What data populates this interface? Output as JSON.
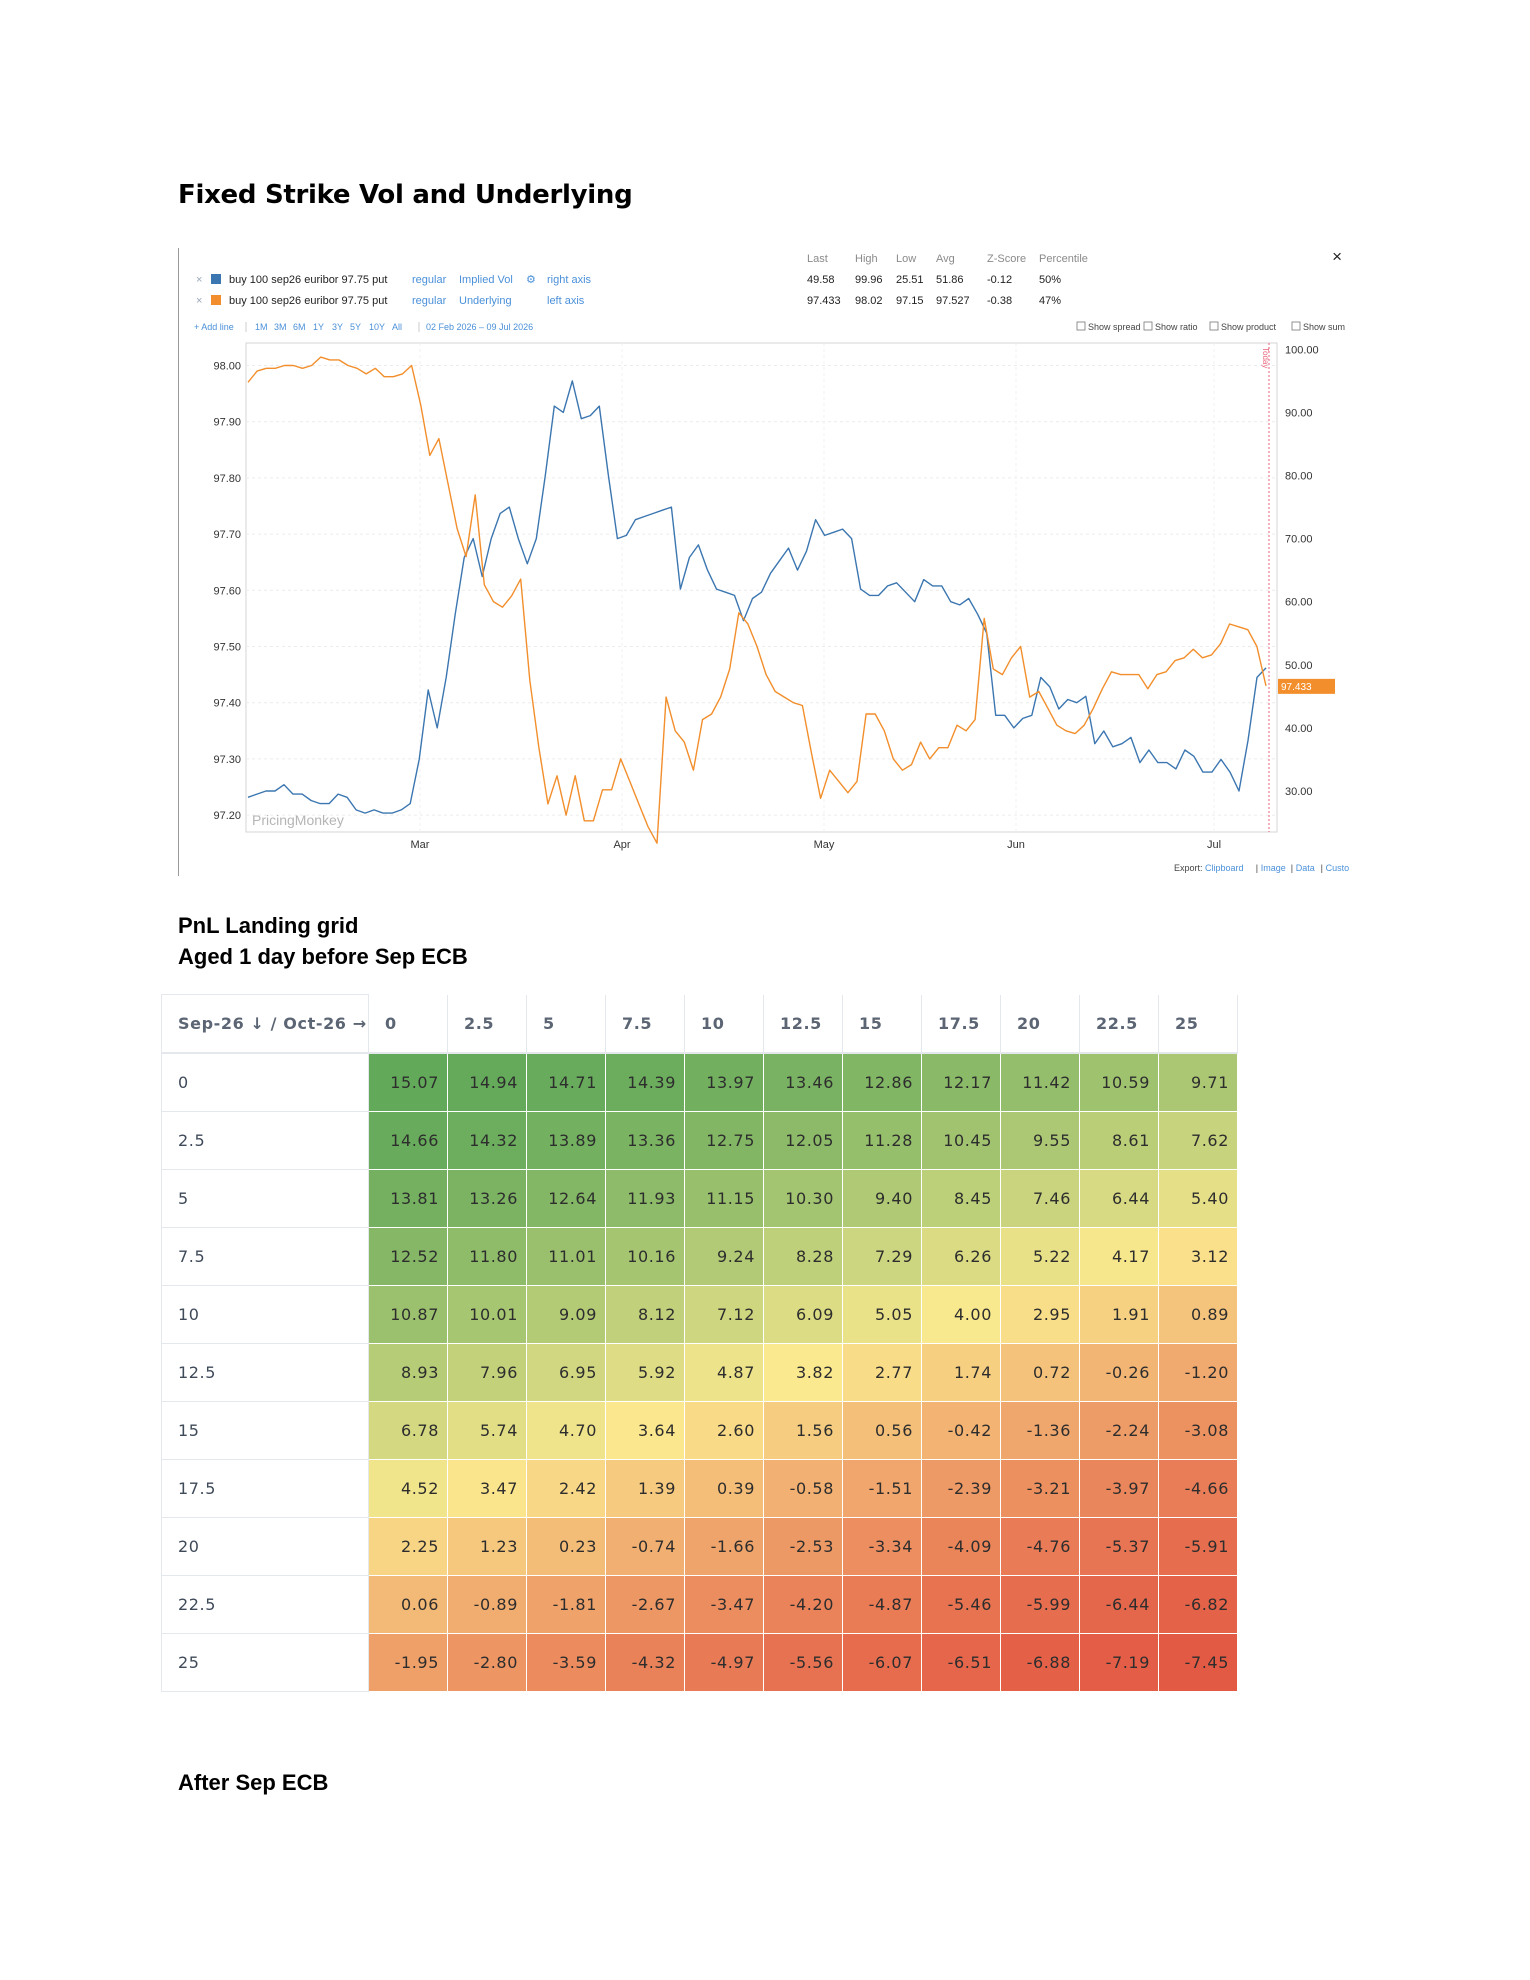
{
  "heading": "Fixed Strike Vol and Underlying",
  "chart_widget": {
    "stats_headers": [
      "Last",
      "High",
      "Low",
      "Avg",
      "Z-Score",
      "Percentile"
    ],
    "rows": [
      {
        "label": "buy 100 sep26 euribor 97.75 put",
        "mode": "regular",
        "measure": "Implied Vol",
        "axis": "right axis",
        "color": "#3b76b0",
        "stats": [
          "49.58",
          "99.96",
          "25.51",
          "51.86",
          "-0.12",
          "50%"
        ]
      },
      {
        "label": "buy 100 sep26 euribor 97.75 put",
        "mode": "regular",
        "measure": "Underlying",
        "axis": "left axis",
        "color": "#f28e2b",
        "stats": [
          "97.433",
          "98.02",
          "97.15",
          "97.527",
          "-0.38",
          "47%"
        ]
      }
    ],
    "remove_symbol": "×",
    "close_symbol": "×",
    "add_line": "+ Add line",
    "ranges": [
      "1M",
      "3M",
      "6M",
      "1Y",
      "3Y",
      "5Y",
      "10Y",
      "All"
    ],
    "date_range": "02 Feb 2026 – 09 Jul 2026",
    "checkboxes": [
      "Show spread",
      "Show ratio",
      "Show product",
      "Show sum"
    ],
    "watermark": "PricingMonkey",
    "today_label": "Today",
    "last_value_label": "97.433",
    "export_label": "Export:",
    "export_links": [
      "Clipboard",
      "Image",
      "Data",
      "Custom"
    ],
    "accent_link": "#4a90d9",
    "today_color": "#e8627a"
  },
  "chart_data": {
    "type": "line",
    "title": "",
    "x_ticks": [
      "Mar",
      "Apr",
      "May",
      "Jun",
      "Jul"
    ],
    "left_axis": {
      "ticks": [
        "97.20",
        "97.30",
        "97.40",
        "97.50",
        "97.60",
        "97.70",
        "97.80",
        "97.90",
        "98.00"
      ],
      "ylim": [
        97.17,
        98.04
      ]
    },
    "right_axis": {
      "ticks": [
        "30.00",
        "40.00",
        "50.00",
        "60.00",
        "70.00",
        "80.00",
        "90.00",
        "100.00"
      ],
      "ylim": [
        23.5,
        101
      ]
    },
    "grid": true,
    "series": [
      {
        "name": "buy 100 sep26 euribor 97.75 put Implied Vol",
        "axis": "right",
        "color": "#3b76b0",
        "values": [
          29,
          29.5,
          30,
          30,
          31,
          29.5,
          29.5,
          28.5,
          28,
          28,
          29.5,
          29,
          27,
          26.5,
          27,
          26.5,
          26.5,
          27,
          28,
          35,
          46,
          40,
          48,
          58,
          67,
          70,
          64,
          70,
          74,
          75,
          70,
          66,
          70,
          80,
          91,
          90,
          95,
          89,
          89.5,
          91,
          80,
          70,
          70.5,
          73,
          73.5,
          74,
          74.5,
          75,
          62,
          67,
          69,
          65,
          62,
          61.5,
          61,
          57,
          60.5,
          61.5,
          64.5,
          66.5,
          68.5,
          65,
          68,
          73,
          70.5,
          71,
          71.5,
          70,
          62,
          61,
          61,
          62.5,
          63,
          61.5,
          60,
          63.5,
          62.5,
          62.5,
          60,
          59.5,
          60.5,
          58,
          55,
          42,
          42,
          40,
          41.5,
          42,
          48,
          46.5,
          43,
          44.5,
          44,
          45,
          37.5,
          39.5,
          37,
          37.5,
          38.5,
          34.5,
          36.5,
          34.5,
          34.5,
          33.5,
          36.5,
          35.5,
          33,
          33,
          35,
          33,
          30,
          38,
          48,
          49.5
        ]
      },
      {
        "name": "buy 100 sep26 euribor 97.75 put Underlying",
        "axis": "left",
        "color": "#f28e2b",
        "values": [
          97.97,
          97.99,
          97.995,
          97.995,
          98.0,
          98.0,
          97.995,
          98.0,
          98.015,
          98.01,
          98.01,
          98.0,
          97.995,
          97.985,
          97.995,
          97.98,
          97.98,
          97.985,
          98.0,
          97.93,
          97.84,
          97.87,
          97.79,
          97.71,
          97.66,
          97.77,
          97.61,
          97.58,
          97.57,
          97.59,
          97.62,
          97.44,
          97.32,
          97.22,
          97.27,
          97.2,
          97.27,
          97.19,
          97.19,
          97.245,
          97.245,
          97.3,
          97.26,
          97.22,
          97.18,
          97.15,
          97.41,
          97.35,
          97.33,
          97.28,
          97.37,
          97.38,
          97.41,
          97.46,
          97.56,
          97.54,
          97.5,
          97.45,
          97.42,
          97.41,
          97.4,
          97.395,
          97.31,
          97.23,
          97.28,
          97.26,
          97.24,
          97.26,
          97.38,
          97.38,
          97.35,
          97.3,
          97.28,
          97.29,
          97.33,
          97.3,
          97.32,
          97.32,
          97.36,
          97.35,
          97.37,
          97.55,
          97.46,
          97.45,
          97.48,
          97.5,
          97.41,
          97.42,
          97.39,
          97.36,
          97.35,
          97.345,
          97.36,
          97.39,
          97.425,
          97.455,
          97.45,
          97.45,
          97.45,
          97.425,
          97.45,
          97.455,
          97.475,
          97.48,
          97.495,
          97.48,
          97.485,
          97.505,
          97.54,
          97.535,
          97.53,
          97.5,
          97.43
        ]
      }
    ]
  },
  "section2_title_line1": "PnL Landing grid",
  "section2_title_line2": "Aged 1 day before Sep ECB",
  "pnl_grid": {
    "corner": "Sep-26 ↓ / Oct-26 →",
    "columns": [
      "0",
      "2.5",
      "5",
      "7.5",
      "10",
      "12.5",
      "15",
      "17.5",
      "20",
      "22.5",
      "25"
    ],
    "rows": [
      {
        "label": "0",
        "values": [
          "15.07",
          "14.94",
          "14.71",
          "14.39",
          "13.97",
          "13.46",
          "12.86",
          "12.17",
          "11.42",
          "10.59",
          "9.71"
        ]
      },
      {
        "label": "2.5",
        "values": [
          "14.66",
          "14.32",
          "13.89",
          "13.36",
          "12.75",
          "12.05",
          "11.28",
          "10.45",
          "9.55",
          "8.61",
          "7.62"
        ]
      },
      {
        "label": "5",
        "values": [
          "13.81",
          "13.26",
          "12.64",
          "11.93",
          "11.15",
          "10.30",
          "9.40",
          "8.45",
          "7.46",
          "6.44",
          "5.40"
        ]
      },
      {
        "label": "7.5",
        "values": [
          "12.52",
          "11.80",
          "11.01",
          "10.16",
          "9.24",
          "8.28",
          "7.29",
          "6.26",
          "5.22",
          "4.17",
          "3.12"
        ]
      },
      {
        "label": "10",
        "values": [
          "10.87",
          "10.01",
          "9.09",
          "8.12",
          "7.12",
          "6.09",
          "5.05",
          "4.00",
          "2.95",
          "1.91",
          "0.89"
        ]
      },
      {
        "label": "12.5",
        "values": [
          "8.93",
          "7.96",
          "6.95",
          "5.92",
          "4.87",
          "3.82",
          "2.77",
          "1.74",
          "0.72",
          "-0.26",
          "-1.20"
        ]
      },
      {
        "label": "15",
        "values": [
          "6.78",
          "5.74",
          "4.70",
          "3.64",
          "2.60",
          "1.56",
          "0.56",
          "-0.42",
          "-1.36",
          "-2.24",
          "-3.08"
        ]
      },
      {
        "label": "17.5",
        "values": [
          "4.52",
          "3.47",
          "2.42",
          "1.39",
          "0.39",
          "-0.58",
          "-1.51",
          "-2.39",
          "-3.21",
          "-3.97",
          "-4.66"
        ]
      },
      {
        "label": "20",
        "values": [
          "2.25",
          "1.23",
          "0.23",
          "-0.74",
          "-1.66",
          "-2.53",
          "-3.34",
          "-4.09",
          "-4.76",
          "-5.37",
          "-5.91"
        ]
      },
      {
        "label": "22.5",
        "values": [
          "0.06",
          "-0.89",
          "-1.81",
          "-2.67",
          "-3.47",
          "-4.20",
          "-4.87",
          "-5.46",
          "-5.99",
          "-6.44",
          "-6.82"
        ]
      },
      {
        "label": "25",
        "values": [
          "-1.95",
          "-2.80",
          "-3.59",
          "-4.32",
          "-4.97",
          "-5.56",
          "-6.07",
          "-6.51",
          "-6.88",
          "-7.19",
          "-7.45"
        ]
      }
    ],
    "colors": {
      "high": "#63a95a",
      "mid": "#fbe98f",
      "low": "#e35a44"
    }
  },
  "section3_title": "After Sep ECB"
}
